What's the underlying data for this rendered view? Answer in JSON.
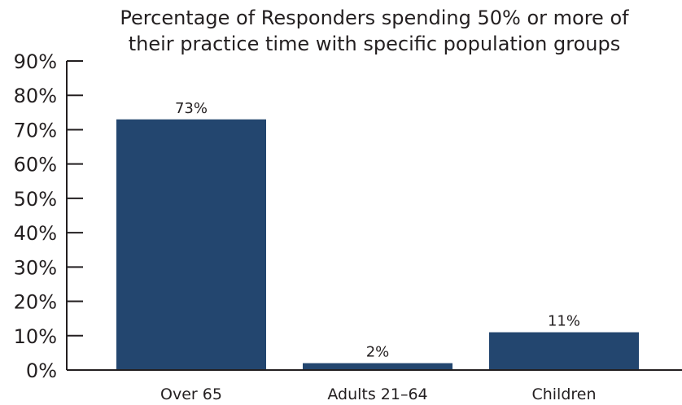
{
  "chart_data": {
    "type": "bar",
    "title": "Percentage of Responders spending 50% or more of their practice time with specific population groups",
    "title_lines": [
      "Percentage of Responders spending 50% or more of",
      "their practice time with specific population groups"
    ],
    "categories": [
      "Over 65",
      "Adults 21–64",
      "Children"
    ],
    "values": [
      73,
      2,
      11
    ],
    "data_labels": [
      "73%",
      "2%",
      "11%"
    ],
    "ylim": [
      0,
      90
    ],
    "yticks": [
      0,
      10,
      20,
      30,
      40,
      50,
      60,
      70,
      80,
      90
    ],
    "ytick_labels": [
      "0%",
      "10%",
      "20%",
      "30%",
      "40%",
      "50%",
      "60%",
      "70%",
      "80%",
      "90%"
    ],
    "xlabel": "",
    "ylabel": "",
    "grid": false,
    "legend": "none",
    "bar_color": "#23466f",
    "axis_color": "#231f20"
  }
}
